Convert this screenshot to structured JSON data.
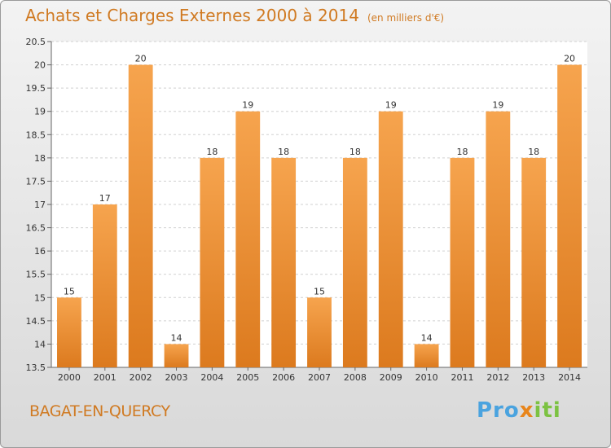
{
  "header": {
    "title": "Achats et Charges Externes 2000 à 2014",
    "unit": "(en milliers d'€)"
  },
  "place_name": "BAGAT-EN-QUERCY",
  "logo": {
    "part1": "Pro",
    "part2": "x",
    "part3": "iti"
  },
  "colors": {
    "bar_top": "#f6a44e",
    "bar_bottom": "#dc7a1e",
    "title": "#d07a22"
  },
  "chart_data": {
    "type": "bar",
    "title": "Achats et Charges Externes 2000 à 2014",
    "categories": [
      "2000",
      "2001",
      "2002",
      "2003",
      "2004",
      "2005",
      "2006",
      "2007",
      "2008",
      "2009",
      "2010",
      "2011",
      "2012",
      "2013",
      "2014"
    ],
    "values": [
      15,
      17,
      20,
      14,
      18,
      19,
      18,
      15,
      18,
      19,
      14,
      18,
      19,
      18,
      20
    ],
    "data_labels": [
      "15",
      "17",
      "20",
      "14",
      "18",
      "19",
      "18",
      "15",
      "18",
      "19",
      "14",
      "18",
      "19",
      "18",
      "20"
    ],
    "y_ticks": [
      "13.5",
      "14",
      "14.5",
      "15",
      "15.5",
      "16",
      "16.5",
      "17",
      "17.5",
      "18",
      "18.5",
      "19",
      "19.5",
      "20",
      "20.5"
    ],
    "ylim": [
      13.5,
      20.5
    ],
    "grid": true,
    "legend": "none"
  }
}
